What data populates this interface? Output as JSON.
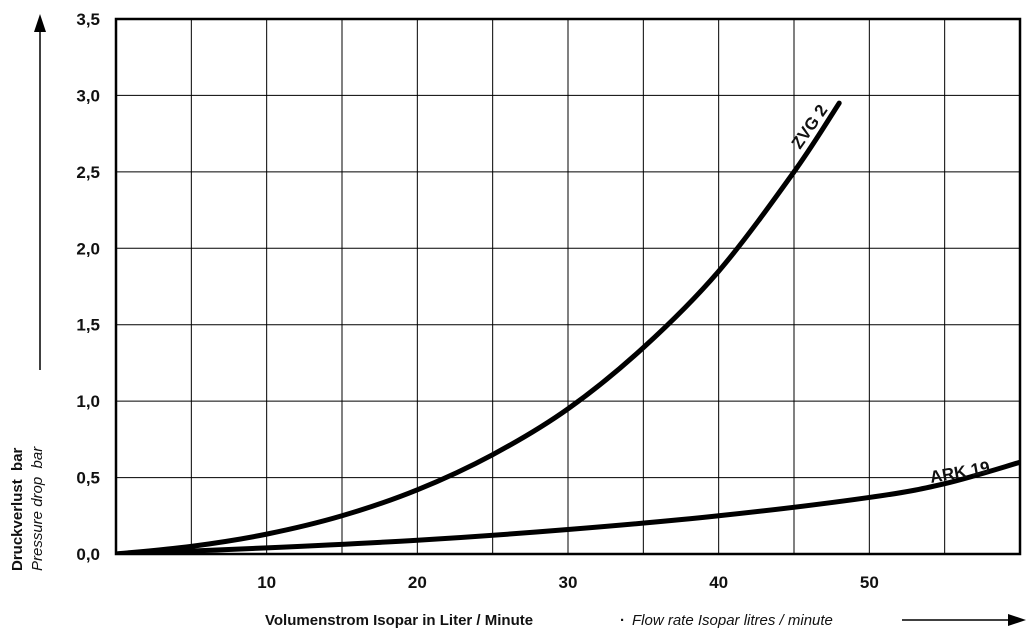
{
  "chart_data": {
    "type": "line",
    "xlabel": "Volumenstrom Isopar in Liter / Minute",
    "xlabel_separator": "·",
    "xlabel_en": "Flow rate Isopar litres / minute",
    "ylabel": "Druckverlust  bar",
    "ylabel_en": "Pressure drop  bar",
    "xlim": [
      0,
      60
    ],
    "ylim": [
      0,
      3.5
    ],
    "x_ticks": [
      10,
      20,
      30,
      40,
      50
    ],
    "x_tick_labels": [
      "10",
      "20",
      "30",
      "40",
      "50"
    ],
    "y_ticks": [
      0,
      0.5,
      1.0,
      1.5,
      2.0,
      2.5,
      3.0,
      3.5
    ],
    "y_tick_labels": [
      "0,0",
      "0,5",
      "1,0",
      "1,5",
      "2,0",
      "2,5",
      "3,0",
      "3,5"
    ],
    "grid": true,
    "series": [
      {
        "name": "ZVG 2",
        "x": [
          0,
          5,
          10,
          15,
          20,
          25,
          30,
          35,
          40,
          45,
          48
        ],
        "y": [
          0.0,
          0.05,
          0.13,
          0.25,
          0.42,
          0.65,
          0.95,
          1.35,
          1.85,
          2.5,
          2.95
        ]
      },
      {
        "name": "ARK 19",
        "x": [
          0,
          10,
          20,
          30,
          40,
          50,
          55,
          60
        ],
        "y": [
          0.0,
          0.04,
          0.09,
          0.16,
          0.25,
          0.37,
          0.46,
          0.6
        ]
      }
    ]
  }
}
